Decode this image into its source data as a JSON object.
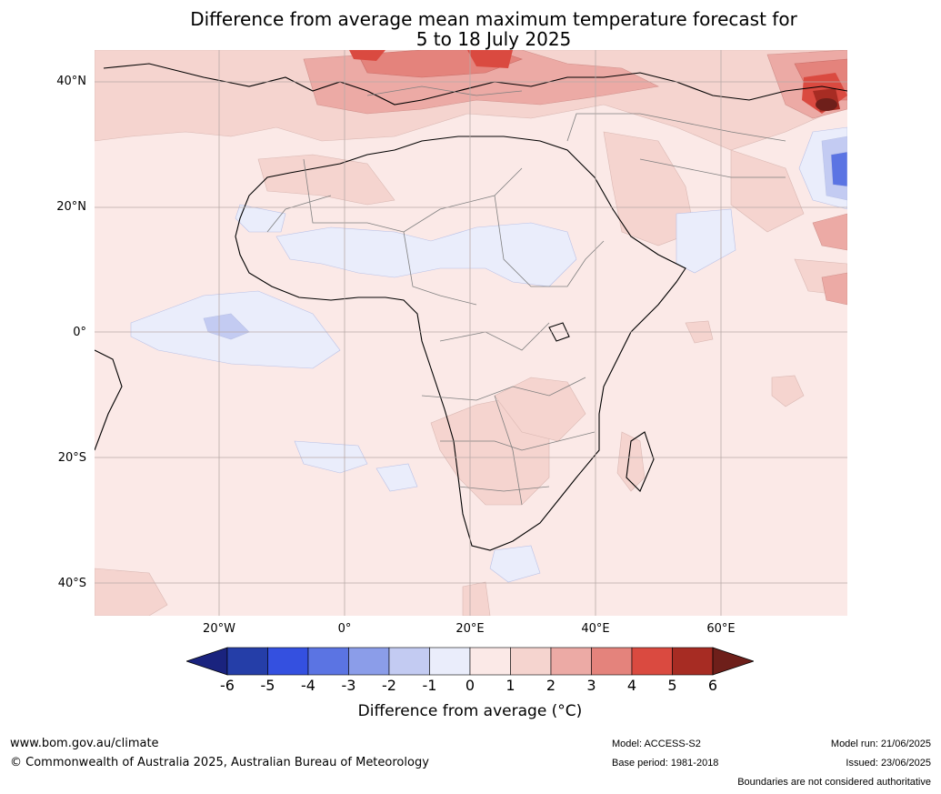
{
  "title": {
    "line1": "Difference from average mean maximum temperature forecast for",
    "line2": "5 to 18 July 2025"
  },
  "map": {
    "latitude_labels": [
      "40°N",
      "20°N",
      "0°",
      "20°S",
      "40°S"
    ],
    "longitude_labels": [
      "20°W",
      "0°",
      "20°E",
      "40°E",
      "60°E"
    ],
    "colors": {
      "neg6": "#1a237e",
      "neg5": "#253ea8",
      "neg4": "#3450e0",
      "neg3": "#5b74e3",
      "neg2": "#8b9de9",
      "neg1": "#c3cbf2",
      "neg0": "#eaedfb",
      "pos0": "#fbe9e7",
      "pos1": "#f5d4cf",
      "pos2": "#ecaaa5",
      "pos3": "#e4837c",
      "pos4": "#da4a40",
      "pos5": "#a72c23",
      "pos6": "#6e1f1a",
      "ocean_base": "#fbe9e7",
      "coast": "#000000",
      "border": "#7f7f7f",
      "grid": "#b8a9a7"
    }
  },
  "colorbar": {
    "ticks": [
      "-6",
      "-5",
      "-4",
      "-3",
      "-2",
      "-1",
      "0",
      "1",
      "2",
      "3",
      "4",
      "5",
      "6"
    ],
    "label": "Difference from average (°C)"
  },
  "footer": {
    "website": "www.bom.gov.au/climate",
    "copyright": "© Commonwealth of Australia 2025, Australian Bureau of Meteorology",
    "model": "Model: ACCESS-S2",
    "base_period": "Base period: 1981-2018",
    "model_run": "Model run: 21/06/2025",
    "issued": "Issued: 23/06/2025",
    "disclaimer": "Boundaries are not considered authoritative"
  }
}
